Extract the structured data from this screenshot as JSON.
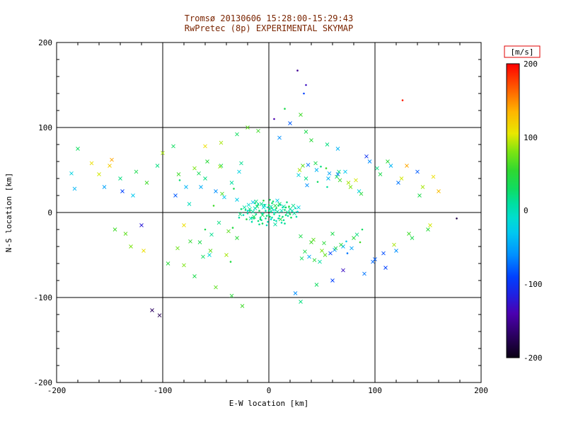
{
  "colors": {
    "background": "#ffffff",
    "title": "#7a2400",
    "axis": "#000000",
    "grid": "#000000",
    "colorbar_label_box": "#e00000"
  },
  "chart_data": {
    "type": "scatter",
    "title": "Tromsø 20130606 15:28:00-15:29:43",
    "subtitle": "RwPretec (8p) EXPERIMENTAL SKYMAP",
    "xlabel": "E-W location [km]",
    "ylabel": "N-S location [km]",
    "xlim": [
      -200,
      200
    ],
    "ylim": [
      -200,
      200
    ],
    "xticks": [
      -200,
      -100,
      0,
      100,
      200
    ],
    "yticks": [
      200,
      100,
      0,
      -100,
      -200
    ],
    "minor_tick_step": 20,
    "grid": true,
    "colorbar": {
      "label": "[m/s]",
      "min": -200,
      "max": 200,
      "ticks": [
        200,
        100,
        0,
        -100,
        -200
      ],
      "stops": [
        [
          -200,
          "#0a0014"
        ],
        [
          -170,
          "#2b0060"
        ],
        [
          -140,
          "#4b00b0"
        ],
        [
          -115,
          "#2020e0"
        ],
        [
          -90,
          "#0040ff"
        ],
        [
          -60,
          "#0090ff"
        ],
        [
          -30,
          "#00c8f0"
        ],
        [
          -10,
          "#00ddd0"
        ],
        [
          10,
          "#00dfa0"
        ],
        [
          30,
          "#10dc60"
        ],
        [
          55,
          "#30d830"
        ],
        [
          80,
          "#7ce412"
        ],
        [
          105,
          "#e8e800"
        ],
        [
          135,
          "#ffb400"
        ],
        [
          165,
          "#ff6000"
        ],
        [
          200,
          "#ff0000"
        ]
      ]
    },
    "points": [
      [
        2,
        1,
        10,
        1
      ],
      [
        -3,
        2,
        5,
        1
      ],
      [
        5,
        -2,
        20,
        1
      ],
      [
        -6,
        -1,
        0,
        1
      ],
      [
        1,
        4,
        15,
        0
      ],
      [
        4,
        3,
        -5,
        1
      ],
      [
        -2,
        -4,
        25,
        1
      ],
      [
        8,
        1,
        10,
        0
      ],
      [
        -9,
        2,
        30,
        1
      ],
      [
        3,
        -6,
        5,
        1
      ],
      [
        12,
        2,
        0,
        0
      ],
      [
        -12,
        -2,
        15,
        1
      ],
      [
        7,
        5,
        35,
        1
      ],
      [
        -5,
        6,
        -10,
        0
      ],
      [
        0,
        -3,
        20,
        1
      ],
      [
        10,
        -4,
        5,
        1
      ],
      [
        -15,
        1,
        10,
        0
      ],
      [
        15,
        3,
        25,
        1
      ],
      [
        -8,
        -6,
        0,
        1
      ],
      [
        6,
        8,
        40,
        0
      ],
      [
        -4,
        9,
        15,
        1
      ],
      [
        2,
        -8,
        -15,
        1
      ],
      [
        18,
        0,
        10,
        0
      ],
      [
        -18,
        2,
        20,
        1
      ],
      [
        13,
        6,
        5,
        1
      ],
      [
        -11,
        7,
        30,
        0
      ],
      [
        9,
        -7,
        0,
        1
      ],
      [
        -7,
        -9,
        10,
        1
      ],
      [
        20,
        4,
        15,
        0
      ],
      [
        -20,
        -1,
        5,
        1
      ],
      [
        16,
        -3,
        25,
        1
      ],
      [
        -14,
        -5,
        35,
        0
      ],
      [
        11,
        9,
        -20,
        1
      ],
      [
        -10,
        10,
        10,
        1
      ],
      [
        22,
        2,
        0,
        0
      ],
      [
        -22,
        3,
        20,
        1
      ],
      [
        19,
        7,
        45,
        1
      ],
      [
        -17,
        -7,
        5,
        0
      ],
      [
        14,
        -9,
        15,
        1
      ],
      [
        -13,
        11,
        25,
        1
      ],
      [
        24,
        -1,
        10,
        0
      ],
      [
        -24,
        -3,
        0,
        1
      ],
      [
        21,
        -6,
        30,
        1
      ],
      [
        -19,
        9,
        -10,
        0
      ],
      [
        17,
        12,
        20,
        1
      ],
      [
        -16,
        -11,
        5,
        1
      ],
      [
        23,
        8,
        15,
        0
      ],
      [
        -21,
        -8,
        40,
        1
      ],
      [
        25,
        5,
        0,
        1
      ],
      [
        -23,
        6,
        10,
        0
      ],
      [
        4,
        13,
        25,
        1
      ],
      [
        -6,
        -13,
        30,
        1
      ],
      [
        8,
        14,
        -25,
        0
      ],
      [
        -9,
        -14,
        15,
        1
      ],
      [
        12,
        -12,
        5,
        1
      ],
      [
        -12,
        13,
        20,
        0
      ],
      [
        1,
        15,
        35,
        1
      ],
      [
        -2,
        -15,
        0,
        1
      ],
      [
        6,
        -14,
        10,
        0
      ],
      [
        -5,
        14,
        45,
        1
      ],
      [
        15,
        -13,
        15,
        1
      ],
      [
        -15,
        12,
        -30,
        0
      ],
      [
        3,
        11,
        25,
        1
      ],
      [
        -1,
        -11,
        5,
        1
      ],
      [
        10,
        10,
        30,
        0
      ],
      [
        -10,
        -10,
        20,
        1
      ],
      [
        7,
        -10,
        0,
        1
      ],
      [
        -7,
        10,
        15,
        0
      ],
      [
        0,
        9,
        40,
        1
      ],
      [
        5,
        -9,
        10,
        1
      ],
      [
        -4,
        8,
        -5,
        0
      ],
      [
        9,
        8,
        25,
        1
      ],
      [
        -8,
        -8,
        35,
        1
      ],
      [
        2,
        7,
        5,
        0
      ],
      [
        -3,
        -7,
        15,
        1
      ],
      [
        13,
        -5,
        20,
        1
      ],
      [
        -13,
        5,
        0,
        0
      ],
      [
        16,
        6,
        30,
        1
      ],
      [
        -16,
        -6,
        10,
        1
      ],
      [
        11,
        -8,
        45,
        0
      ],
      [
        -11,
        8,
        25,
        1
      ],
      [
        18,
        -4,
        5,
        1
      ],
      [
        -18,
        4,
        15,
        0
      ],
      [
        20,
        -2,
        35,
        1
      ],
      [
        -20,
        2,
        -15,
        1
      ],
      [
        14,
        7,
        10,
        0
      ],
      [
        -14,
        -7,
        20,
        1
      ],
      [
        6,
        3,
        0,
        1
      ],
      [
        -6,
        -3,
        30,
        0
      ],
      [
        3,
        5,
        15,
        1
      ],
      [
        27,
        1,
        -10,
        1
      ],
      [
        -27,
        -2,
        20,
        0
      ],
      [
        26,
        -5,
        5,
        1
      ],
      [
        -26,
        4,
        25,
        1
      ],
      [
        28,
        6,
        -20,
        0
      ],
      [
        -28,
        -6,
        10,
        1
      ],
      [
        0,
        2,
        18,
        1
      ],
      [
        -1,
        6,
        8,
        1
      ],
      [
        1,
        -5,
        28,
        1
      ],
      [
        5,
        0,
        -8,
        1
      ],
      [
        -85,
        45,
        60,
        0
      ],
      [
        -78,
        30,
        -40,
        0
      ],
      [
        -70,
        52,
        80,
        0
      ],
      [
        -65,
        -35,
        40,
        0
      ],
      [
        -60,
        40,
        20,
        0
      ],
      [
        -55,
        -45,
        70,
        0
      ],
      [
        -50,
        25,
        -60,
        0
      ],
      [
        -45,
        55,
        30,
        0
      ],
      [
        -40,
        -50,
        90,
        0
      ],
      [
        -35,
        35,
        10,
        0
      ],
      [
        -30,
        -30,
        50,
        0
      ],
      [
        -28,
        48,
        -20,
        0
      ],
      [
        -60,
        -20,
        40,
        1
      ],
      [
        -75,
        10,
        0,
        0
      ],
      [
        -80,
        -15,
        110,
        0
      ],
      [
        -88,
        20,
        -80,
        0
      ],
      [
        -52,
        8,
        60,
        1
      ],
      [
        -47,
        -12,
        20,
        0
      ],
      [
        -42,
        18,
        -30,
        0
      ],
      [
        -38,
        -22,
        70,
        0
      ],
      [
        -33,
        28,
        40,
        1
      ],
      [
        -58,
        60,
        50,
        0
      ],
      [
        -62,
        -52,
        30,
        0
      ],
      [
        35,
        40,
        20,
        0
      ],
      [
        40,
        -35,
        60,
        0
      ],
      [
        45,
        50,
        -40,
        0
      ],
      [
        50,
        -45,
        80,
        0
      ],
      [
        55,
        30,
        10,
        1
      ],
      [
        60,
        -25,
        40,
        0
      ],
      [
        65,
        45,
        -70,
        0
      ],
      [
        70,
        -40,
        -40,
        0
      ],
      [
        75,
        35,
        90,
        0
      ],
      [
        80,
        -30,
        50,
        0
      ],
      [
        85,
        25,
        -20,
        0
      ],
      [
        88,
        -20,
        30,
        1
      ],
      [
        32,
        55,
        70,
        0
      ],
      [
        38,
        -52,
        -50,
        0
      ],
      [
        44,
        58,
        40,
        0
      ],
      [
        48,
        -58,
        10,
        0
      ],
      [
        54,
        52,
        60,
        1
      ],
      [
        58,
        -48,
        -90,
        0
      ],
      [
        64,
        42,
        30,
        0
      ],
      [
        68,
        -38,
        50,
        0
      ],
      [
        72,
        48,
        -30,
        0
      ],
      [
        78,
        -42,
        -50,
        0
      ],
      [
        82,
        38,
        100,
        0
      ],
      [
        86,
        -35,
        60,
        1
      ],
      [
        30,
        -28,
        40,
        0
      ],
      [
        36,
        32,
        -60,
        0
      ],
      [
        42,
        -32,
        70,
        0
      ],
      [
        46,
        36,
        30,
        1
      ],
      [
        52,
        -36,
        50,
        0
      ],
      [
        56,
        40,
        -40,
        0
      ],
      [
        62,
        -44,
        -60,
        0
      ],
      [
        66,
        48,
        20,
        0
      ],
      [
        74,
        -48,
        -70,
        1
      ],
      [
        28,
        44,
        -20,
        0
      ],
      [
        34,
        -46,
        40,
        0
      ],
      [
        29,
        50,
        90,
        0
      ],
      [
        31,
        -54,
        30,
        0
      ],
      [
        37,
        56,
        -70,
        0
      ],
      [
        43,
        -56,
        50,
        0
      ],
      [
        49,
        54,
        20,
        1
      ],
      [
        53,
        -50,
        70,
        0
      ],
      [
        57,
        46,
        -50,
        0
      ],
      [
        63,
        -42,
        40,
        0
      ],
      [
        67,
        38,
        60,
        0
      ],
      [
        73,
        -34,
        -30,
        1
      ],
      [
        77,
        30,
        80,
        0
      ],
      [
        83,
        -26,
        20,
        0
      ],
      [
        87,
        22,
        50,
        0
      ],
      [
        -30,
        15,
        -25,
        0
      ],
      [
        -34,
        -18,
        45,
        1
      ],
      [
        -44,
        22,
        65,
        0
      ],
      [
        -54,
        -26,
        15,
        0
      ],
      [
        -64,
        30,
        -45,
        0
      ],
      [
        -74,
        -34,
        55,
        0
      ],
      [
        -84,
        38,
        25,
        1
      ],
      [
        -86,
        -42,
        75,
        0
      ],
      [
        -66,
        46,
        35,
        0
      ],
      [
        -56,
        -50,
        -15,
        0
      ],
      [
        -46,
        54,
        85,
        0
      ],
      [
        -36,
        -58,
        45,
        1
      ],
      [
        -26,
        58,
        15,
        0
      ],
      [
        -186,
        46,
        -20,
        0
      ],
      [
        -183,
        28,
        -40,
        0
      ],
      [
        -180,
        75,
        30,
        0
      ],
      [
        -167,
        58,
        110,
        0
      ],
      [
        -160,
        45,
        100,
        0
      ],
      [
        -155,
        30,
        -50,
        0
      ],
      [
        -150,
        55,
        120,
        0
      ],
      [
        -145,
        -20,
        60,
        0
      ],
      [
        -140,
        40,
        20,
        0
      ],
      [
        -148,
        62,
        140,
        0
      ],
      [
        -138,
        25,
        -90,
        0
      ],
      [
        -130,
        -40,
        80,
        0
      ],
      [
        -125,
        48,
        40,
        0
      ],
      [
        -120,
        -15,
        -120,
        0
      ],
      [
        -115,
        35,
        60,
        0
      ],
      [
        -110,
        -115,
        -170,
        0
      ],
      [
        -103,
        -121,
        -175,
        0
      ],
      [
        -105,
        55,
        20,
        0
      ],
      [
        -100,
        70,
        90,
        0
      ],
      [
        -95,
        -60,
        50,
        0
      ],
      [
        -118,
        -45,
        110,
        0
      ],
      [
        -128,
        20,
        -30,
        0
      ],
      [
        -135,
        -25,
        70,
        0
      ],
      [
        -90,
        78,
        30,
        0
      ],
      [
        95,
        60,
        -60,
        0
      ],
      [
        100,
        -55,
        -80,
        0
      ],
      [
        105,
        45,
        40,
        0
      ],
      [
        110,
        -65,
        -90,
        0
      ],
      [
        115,
        55,
        -40,
        0
      ],
      [
        120,
        -45,
        -60,
        0
      ],
      [
        125,
        40,
        100,
        0
      ],
      [
        126,
        132,
        190,
        1
      ],
      [
        130,
        55,
        140,
        0
      ],
      [
        135,
        -30,
        40,
        0
      ],
      [
        140,
        48,
        -80,
        0
      ],
      [
        145,
        30,
        90,
        0
      ],
      [
        150,
        -20,
        50,
        0
      ],
      [
        155,
        42,
        110,
        0
      ],
      [
        160,
        25,
        130,
        0
      ],
      [
        177,
        -7,
        -180,
        1
      ],
      [
        90,
        -72,
        -70,
        0
      ],
      [
        92,
        66,
        -100,
        0
      ],
      [
        98,
        -58,
        -75,
        0
      ],
      [
        102,
        52,
        20,
        0
      ],
      [
        108,
        -48,
        -85,
        0
      ],
      [
        112,
        60,
        50,
        0
      ],
      [
        118,
        -38,
        90,
        0
      ],
      [
        122,
        35,
        -70,
        0
      ],
      [
        132,
        -25,
        60,
        0
      ],
      [
        142,
        20,
        40,
        0
      ],
      [
        152,
        -15,
        100,
        0
      ],
      [
        27,
        167,
        -150,
        1
      ],
      [
        30,
        115,
        60,
        0
      ],
      [
        20,
        105,
        -80,
        0
      ],
      [
        35,
        95,
        40,
        0
      ],
      [
        -20,
        100,
        70,
        0
      ],
      [
        -30,
        92,
        30,
        0
      ],
      [
        10,
        88,
        -60,
        0
      ],
      [
        40,
        85,
        50,
        0
      ],
      [
        -45,
        82,
        90,
        0
      ],
      [
        55,
        80,
        20,
        0
      ],
      [
        -60,
        78,
        110,
        0
      ],
      [
        65,
        75,
        -40,
        0
      ],
      [
        15,
        122,
        40,
        1
      ],
      [
        5,
        110,
        -140,
        1
      ],
      [
        -10,
        96,
        60,
        0
      ],
      [
        45,
        -85,
        30,
        0
      ],
      [
        -50,
        -88,
        70,
        0
      ],
      [
        25,
        -95,
        -60,
        0
      ],
      [
        -35,
        -98,
        50,
        0
      ],
      [
        60,
        -80,
        -90,
        0
      ],
      [
        -70,
        -75,
        40,
        0
      ],
      [
        30,
        -105,
        20,
        0
      ],
      [
        -25,
        -110,
        60,
        0
      ],
      [
        70,
        -68,
        -130,
        0
      ],
      [
        -80,
        -62,
        80,
        0
      ],
      [
        35,
        150,
        -130,
        1
      ],
      [
        33,
        140,
        -90,
        1
      ]
    ]
  }
}
